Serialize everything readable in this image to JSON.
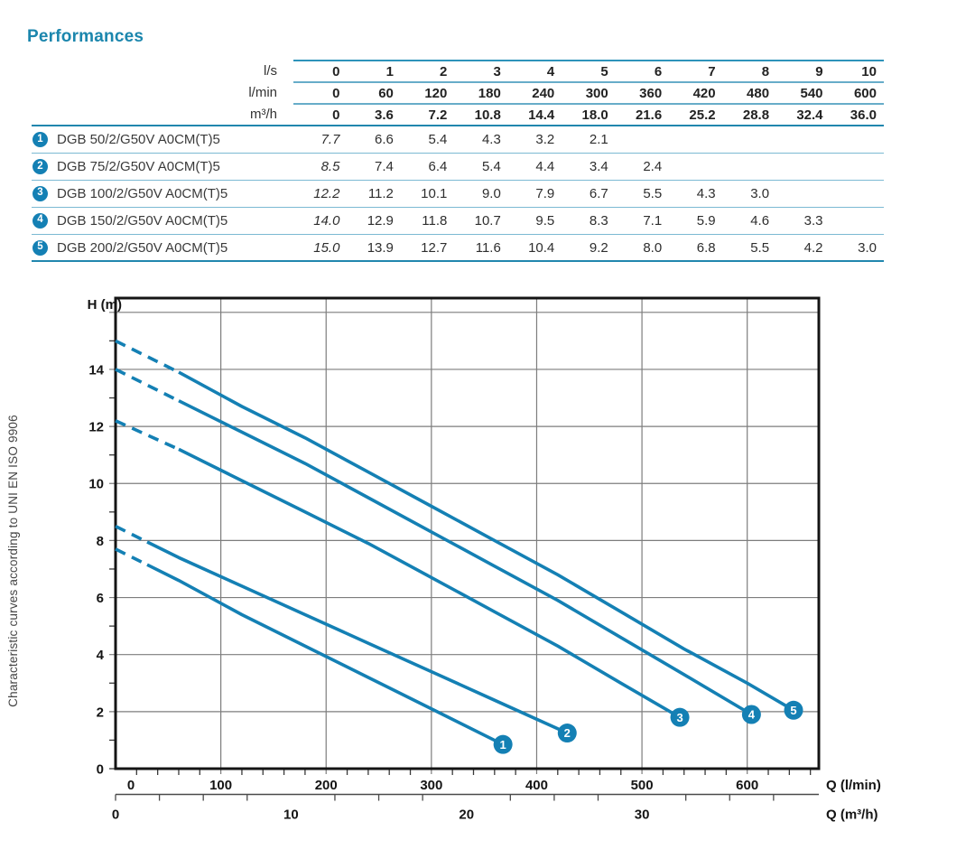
{
  "page": {
    "title": "Performances",
    "side_note": "Characteristic curves according to UNI EN ISO 9906"
  },
  "colors": {
    "accent": "#1b86ad",
    "table_line_strong": "#2187ae",
    "table_line_light": "#7cbad3",
    "header_line": "#2e93ba",
    "badge": "#1480b4",
    "curve": "#1480b4",
    "grid": "#7d7d7d",
    "frame": "#141414"
  },
  "table": {
    "unit_rows": [
      {
        "label": "l/s",
        "values": [
          "0",
          "1",
          "2",
          "3",
          "4",
          "5",
          "6",
          "7",
          "8",
          "9",
          "10"
        ]
      },
      {
        "label": "l/min",
        "values": [
          "0",
          "60",
          "120",
          "180",
          "240",
          "300",
          "360",
          "420",
          "480",
          "540",
          "600"
        ]
      },
      {
        "label": "m³/h",
        "values": [
          "0",
          "3.6",
          "7.2",
          "10.8",
          "14.4",
          "18.0",
          "21.6",
          "25.2",
          "28.8",
          "32.4",
          "36.0"
        ]
      }
    ],
    "rows": [
      {
        "num": "1",
        "model": "DGB 50/2/G50V A0CM(T)5",
        "values": [
          "7.7",
          "6.6",
          "5.4",
          "4.3",
          "3.2",
          "2.1",
          "",
          "",
          "",
          "",
          ""
        ]
      },
      {
        "num": "2",
        "model": "DGB 75/2/G50V A0CM(T)5",
        "values": [
          "8.5",
          "7.4",
          "6.4",
          "5.4",
          "4.4",
          "3.4",
          "2.4",
          "",
          "",
          "",
          ""
        ]
      },
      {
        "num": "3",
        "model": "DGB 100/2/G50V A0CM(T)5",
        "values": [
          "12.2",
          "11.2",
          "10.1",
          "9.0",
          "7.9",
          "6.7",
          "5.5",
          "4.3",
          "3.0",
          "",
          ""
        ]
      },
      {
        "num": "4",
        "model": "DGB 150/2/G50V A0CM(T)5",
        "values": [
          "14.0",
          "12.9",
          "11.8",
          "10.7",
          "9.5",
          "8.3",
          "7.1",
          "5.9",
          "4.6",
          "3.3",
          ""
        ]
      },
      {
        "num": "5",
        "model": "DGB 200/2/G50V A0CM(T)5",
        "values": [
          "15.0",
          "13.9",
          "12.7",
          "11.6",
          "10.4",
          "9.2",
          "8.0",
          "6.8",
          "5.5",
          "4.2",
          "3.0"
        ]
      }
    ]
  },
  "chart_data": {
    "type": "line",
    "title": "",
    "ylabel": "H (m)",
    "xlabel_primary": "Q (l/min)",
    "xlabel_secondary": "Q (m³/h)",
    "x_axis": {
      "unit": "l/min",
      "min": 0,
      "max": 668,
      "gridline_every": 100,
      "minor_tick_every": 20,
      "labels": [
        0,
        100,
        200,
        300,
        400,
        500,
        600
      ]
    },
    "x2_axis": {
      "unit": "m³/h",
      "min": 0,
      "max": 40,
      "tick_every": 2.5,
      "labels": [
        0,
        10,
        20,
        30
      ],
      "lmin_per_unit": 16.6667
    },
    "y_axis": {
      "unit": "m",
      "min": 0,
      "max": 16.5,
      "gridline_every": 2,
      "minor_tick_every": 1,
      "labels": [
        0,
        2,
        4,
        6,
        8,
        10,
        12,
        14
      ]
    },
    "grid": true,
    "color": "#1480b4",
    "series": [
      {
        "name": "1",
        "model": "DGB 50/2/G50V A0CM(T)5",
        "dashed_until_lmin": 30,
        "q_lmin": [
          0,
          60,
          120,
          180,
          240,
          300,
          368
        ],
        "h_m": [
          7.7,
          6.6,
          5.4,
          4.3,
          3.2,
          2.1,
          0.85
        ]
      },
      {
        "name": "2",
        "model": "DGB 75/2/G50V A0CM(T)5",
        "dashed_until_lmin": 30,
        "q_lmin": [
          0,
          60,
          120,
          180,
          240,
          300,
          360,
          429
        ],
        "h_m": [
          8.5,
          7.4,
          6.4,
          5.4,
          4.4,
          3.4,
          2.4,
          1.25
        ]
      },
      {
        "name": "3",
        "model": "DGB 100/2/G50V A0CM(T)5",
        "dashed_until_lmin": 60,
        "q_lmin": [
          0,
          60,
          120,
          180,
          240,
          300,
          360,
          420,
          480,
          536
        ],
        "h_m": [
          12.2,
          11.2,
          10.1,
          9.0,
          7.9,
          6.7,
          5.5,
          4.3,
          3.0,
          1.8
        ]
      },
      {
        "name": "4",
        "model": "DGB 150/2/G50V A0CM(T)5",
        "dashed_until_lmin": 60,
        "q_lmin": [
          0,
          60,
          120,
          180,
          240,
          300,
          360,
          420,
          480,
          540,
          604
        ],
        "h_m": [
          14.0,
          12.9,
          11.8,
          10.7,
          9.5,
          8.3,
          7.1,
          5.9,
          4.6,
          3.3,
          1.9
        ]
      },
      {
        "name": "5",
        "model": "DGB 200/2/G50V A0CM(T)5",
        "dashed_until_lmin": 60,
        "q_lmin": [
          0,
          60,
          120,
          180,
          240,
          300,
          360,
          420,
          480,
          540,
          600,
          644
        ],
        "h_m": [
          15.0,
          13.9,
          12.7,
          11.6,
          10.4,
          9.2,
          8.0,
          6.8,
          5.5,
          4.2,
          3.0,
          2.05
        ]
      }
    ]
  }
}
